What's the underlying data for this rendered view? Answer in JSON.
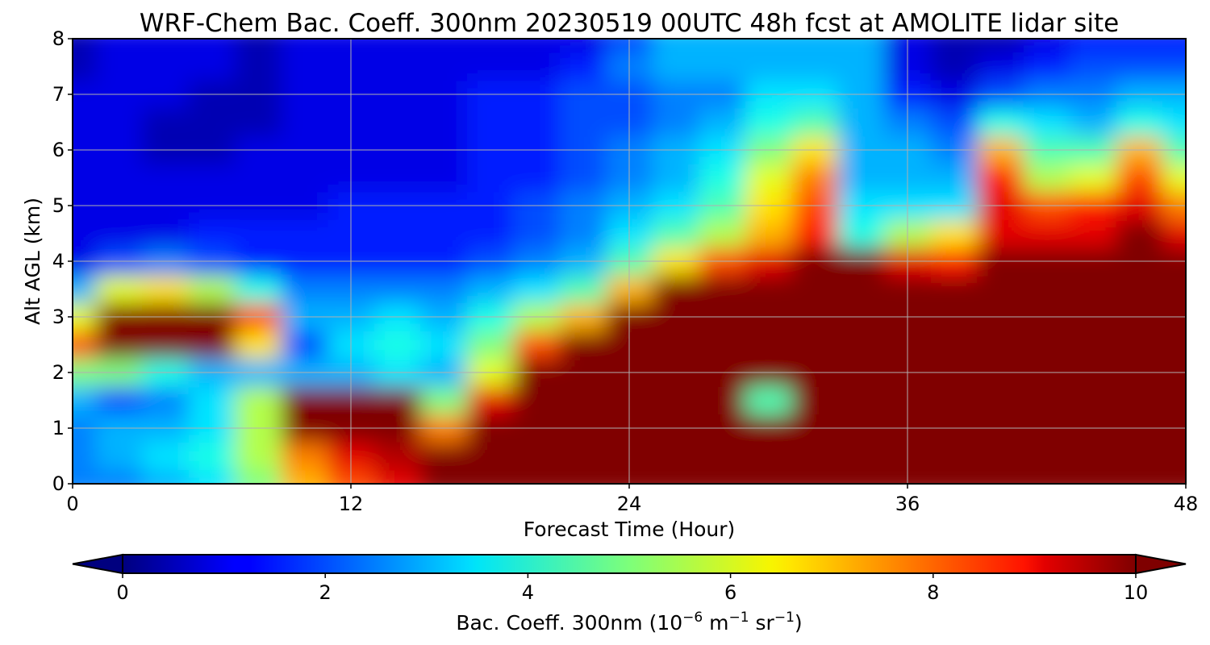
{
  "chart_data": {
    "type": "heatmap",
    "title": "WRF-Chem Bac. Coeff. 300nm  20230519 00UTC 48h fcst at AMOLITE lidar site",
    "xlabel": "Forecast Time (Hour)",
    "ylabel": "Alt AGL (km)",
    "xlim": [
      0,
      48
    ],
    "ylim": [
      0,
      8
    ],
    "x_ticks": [
      0,
      12,
      24,
      36,
      48
    ],
    "x_tick_labels": [
      "0",
      "12",
      "24",
      "36",
      "48"
    ],
    "y_ticks": [
      0,
      1,
      2,
      3,
      4,
      5,
      6,
      7,
      8
    ],
    "y_tick_labels": [
      "0",
      "1",
      "2",
      "3",
      "4",
      "5",
      "6",
      "7",
      "8"
    ],
    "grid": true,
    "colormap": "jet",
    "colorbar": {
      "label_main": "Bac. Coeff. 300nm",
      "label_unit_open": "(10",
      "label_unit_exp1": "−6",
      "label_unit_mid": " m",
      "label_unit_exp2": "−1",
      "label_unit_sr": " sr",
      "label_unit_exp3": "−1",
      "label_unit_close": ")",
      "range": [
        0,
        10
      ],
      "ticks": [
        0,
        2,
        4,
        6,
        8,
        10
      ],
      "tick_labels": [
        "0",
        "2",
        "4",
        "6",
        "8",
        "10"
      ],
      "extend": "both"
    },
    "x": [
      0,
      2,
      4,
      6,
      8,
      10,
      12,
      14,
      16,
      18,
      20,
      22,
      24,
      26,
      28,
      30,
      32,
      34,
      36,
      38,
      40,
      42,
      44,
      46,
      48
    ],
    "y": [
      0,
      0.5,
      1,
      1.5,
      2,
      2.5,
      3,
      3.5,
      4,
      4.5,
      5,
      5.5,
      6,
      6.5,
      7,
      7.5,
      8
    ],
    "z": [
      [
        2.5,
        2.5,
        3.0,
        3.5,
        5.0,
        7.0,
        8.0,
        9.0,
        10,
        10,
        10,
        10,
        10,
        10,
        10,
        10,
        10,
        10,
        10,
        10,
        10,
        10,
        10,
        10,
        10
      ],
      [
        2.5,
        3.0,
        3.5,
        4.0,
        5.5,
        7.5,
        9.0,
        9.5,
        10,
        10,
        10,
        10,
        10,
        10,
        10,
        10,
        10,
        10,
        10,
        10,
        10,
        10,
        10,
        10,
        10
      ],
      [
        2.5,
        3.0,
        3.0,
        3.5,
        5.5,
        10,
        10,
        10,
        7.5,
        10,
        10,
        10,
        10,
        10,
        10,
        10,
        10,
        10,
        10,
        10,
        10,
        10,
        10,
        10,
        10
      ],
      [
        3.0,
        2.0,
        2.5,
        3.5,
        5.5,
        10,
        10,
        10,
        5.0,
        9.0,
        10,
        10,
        10,
        10,
        10,
        4.5,
        10,
        10,
        10,
        10,
        10,
        10,
        10,
        10,
        10
      ],
      [
        5.0,
        5.0,
        4.0,
        3.0,
        3.0,
        3.0,
        3.0,
        3.5,
        3.0,
        6.0,
        10,
        10,
        10,
        10,
        10,
        10,
        10,
        10,
        10,
        10,
        10,
        10,
        10,
        10,
        10
      ],
      [
        8.0,
        10,
        10,
        10,
        6.5,
        2.0,
        3.5,
        4.0,
        3.5,
        5.0,
        8.0,
        10,
        10,
        10,
        10,
        10,
        10,
        10,
        10,
        10,
        10,
        10,
        10,
        10,
        10
      ],
      [
        6.0,
        10,
        10,
        10,
        8.0,
        3.0,
        3.0,
        3.5,
        3.0,
        4.0,
        5.5,
        7.0,
        10,
        10,
        10,
        10,
        10,
        10,
        10,
        10,
        10,
        10,
        10,
        10,
        10
      ],
      [
        3.0,
        6.0,
        6.5,
        5.5,
        4.0,
        2.5,
        2.5,
        2.5,
        2.5,
        3.0,
        3.5,
        4.5,
        7.0,
        10,
        10,
        10,
        10,
        10,
        10,
        10,
        10,
        10,
        10,
        10,
        10
      ],
      [
        1.0,
        2.0,
        2.5,
        2.0,
        1.5,
        1.5,
        1.5,
        1.5,
        1.5,
        2.0,
        2.5,
        3.0,
        4.5,
        6.5,
        8.0,
        9.0,
        10,
        10,
        9.0,
        8.5,
        10,
        10,
        10,
        10,
        10
      ],
      [
        1.0,
        1.0,
        1.0,
        1.5,
        1.5,
        1.5,
        1.5,
        1.5,
        1.5,
        1.5,
        2.0,
        2.5,
        3.5,
        4.5,
        5.5,
        7.0,
        8.5,
        4.0,
        5.5,
        6.5,
        9.0,
        9.0,
        9.0,
        10,
        9.0
      ],
      [
        1.0,
        1.0,
        1.0,
        1.0,
        1.0,
        1.0,
        1.5,
        1.5,
        1.5,
        1.5,
        2.0,
        2.5,
        3.0,
        3.5,
        4.5,
        6.5,
        8.0,
        3.5,
        3.5,
        3.5,
        9.0,
        8.0,
        8.5,
        9.0,
        7.5
      ],
      [
        1.0,
        1.0,
        1.0,
        1.0,
        1.0,
        1.0,
        1.0,
        1.0,
        1.0,
        1.5,
        1.5,
        2.0,
        2.5,
        3.0,
        4.0,
        6.0,
        7.5,
        3.0,
        3.0,
        3.0,
        8.5,
        5.5,
        6.0,
        8.0,
        6.0
      ],
      [
        1.0,
        1.0,
        0.5,
        0.5,
        1.0,
        1.0,
        1.0,
        1.0,
        1.0,
        1.5,
        1.5,
        2.0,
        2.5,
        3.0,
        3.5,
        5.0,
        6.5,
        3.0,
        3.0,
        2.5,
        7.0,
        4.5,
        4.5,
        7.0,
        4.5
      ],
      [
        1.0,
        1.0,
        0.5,
        0.5,
        0.5,
        1.0,
        1.0,
        1.0,
        1.0,
        1.5,
        1.5,
        2.0,
        2.0,
        2.5,
        3.0,
        4.0,
        4.5,
        3.0,
        2.5,
        2.0,
        4.0,
        3.5,
        3.0,
        4.0,
        3.5
      ],
      [
        1.0,
        1.0,
        1.0,
        0.5,
        0.5,
        1.0,
        1.0,
        1.0,
        1.0,
        1.5,
        1.5,
        2.0,
        2.0,
        2.5,
        2.5,
        3.5,
        3.5,
        3.0,
        1.5,
        1.0,
        2.0,
        2.5,
        2.5,
        3.0,
        3.0
      ],
      [
        0.5,
        1.0,
        1.0,
        1.0,
        0.5,
        1.0,
        1.0,
        1.0,
        1.0,
        1.0,
        1.0,
        1.5,
        2.5,
        3.0,
        3.0,
        3.0,
        3.0,
        3.0,
        1.0,
        0.5,
        1.0,
        1.5,
        2.0,
        2.0,
        2.0
      ],
      [
        0.5,
        1.0,
        1.0,
        1.0,
        0.5,
        1.0,
        1.0,
        1.0,
        1.0,
        1.0,
        1.0,
        1.0,
        2.0,
        3.0,
        3.0,
        3.0,
        3.0,
        3.0,
        1.0,
        0.5,
        0.5,
        1.0,
        1.5,
        1.5,
        1.5
      ]
    ]
  }
}
